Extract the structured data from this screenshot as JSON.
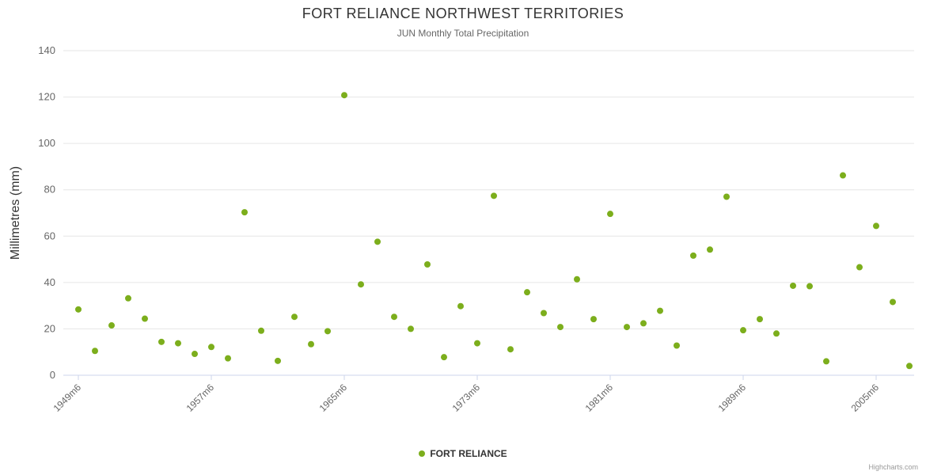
{
  "chart_data": {
    "type": "scatter",
    "title": "FORT RELIANCE NORTHWEST TERRITORIES",
    "subtitle": "JUN Monthly Total Precipitation",
    "ylabel": "Millimetres (mm)",
    "ylim": [
      0,
      140
    ],
    "ytick_interval": 20,
    "grid": true,
    "legend_position": "bottom-center",
    "series_name": "FORT RELIANCE",
    "marker_color": "#7CAE1C",
    "grid_color": "#E6E6E6",
    "axis_line_color": "#CCD6EB",
    "credits": "Highcharts.com",
    "categories": [
      "1949m6",
      "1950m6",
      "1951m6",
      "1952m6",
      "1953m6",
      "1954m6",
      "1955m6",
      "1956m6",
      "1957m6",
      "1958m6",
      "1959m6",
      "1960m6",
      "1961m6",
      "1962m6",
      "1963m6",
      "1964m6",
      "1965m6",
      "1966m6",
      "1967m6",
      "1968m6",
      "1969m6",
      "1970m6",
      "1971m6",
      "1972m6",
      "1973m6",
      "1974m6",
      "1975m6",
      "1976m6",
      "1977m6",
      "1978m6",
      "1979m6",
      "1980m6",
      "1981m6",
      "1982m6",
      "1983m6",
      "1984m6",
      "1985m6",
      "1986m6",
      "1987m6",
      "1988m6",
      "1989m6",
      "1990m6",
      "1992m6",
      "1994m6",
      "1996m6",
      "1998m6",
      "2000m6",
      "2002m6",
      "2005m6",
      "2006m6",
      "2007m6"
    ],
    "values": [
      28.4,
      10.5,
      21.5,
      33.2,
      24.4,
      14.4,
      13.8,
      9.2,
      12.2,
      7.3,
      70.3,
      19.2,
      6.2,
      25.2,
      13.4,
      19.0,
      120.8,
      39.2,
      57.6,
      25.2,
      20.0,
      47.8,
      7.8,
      29.8,
      13.8,
      77.4,
      11.2,
      35.8,
      26.8,
      20.8,
      41.4,
      24.2,
      69.6,
      20.8,
      22.4,
      27.8,
      12.8,
      51.6,
      54.2,
      77.0,
      19.4,
      24.2,
      18.0,
      38.6,
      38.4,
      6.0,
      86.2,
      46.6,
      64.4,
      31.6,
      4.0
    ],
    "shown_x_tick_indices": [
      0,
      8,
      16,
      24,
      32,
      40,
      48
    ]
  }
}
